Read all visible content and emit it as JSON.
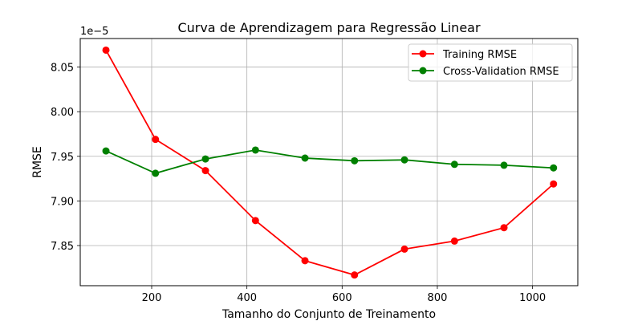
{
  "chart_data": {
    "type": "line",
    "title": "Curva de Aprendizagem para Regressão Linear",
    "xlabel": "Tamanho do Conjunto de Treinamento",
    "ylabel": "RMSE",
    "y_offset_label": "1e−5",
    "y_scale_factor": 1e-05,
    "xlim": [
      50,
      1095
    ],
    "ylim": [
      7.805,
      8.082
    ],
    "x_ticks": [
      200,
      400,
      600,
      800,
      1000
    ],
    "x_tick_labels": [
      "200",
      "400",
      "600",
      "800",
      "1000"
    ],
    "y_ticks": [
      7.85,
      7.9,
      7.95,
      8.0,
      8.05
    ],
    "y_tick_labels": [
      "7.85",
      "7.90",
      "7.95",
      "8.00",
      "8.05"
    ],
    "grid": true,
    "legend_position": "top-right",
    "x": [
      104,
      208,
      313,
      418,
      522,
      626,
      731,
      836,
      940,
      1044
    ],
    "series": [
      {
        "name": "Training RMSE",
        "color": "#ff0000",
        "values": [
          8.069,
          7.969,
          7.934,
          7.878,
          7.833,
          7.817,
          7.846,
          7.855,
          7.87,
          7.919
        ]
      },
      {
        "name": "Cross-Validation RMSE",
        "color": "#008000",
        "values": [
          7.956,
          7.931,
          7.947,
          7.957,
          7.948,
          7.945,
          7.946,
          7.941,
          7.94,
          7.937
        ]
      }
    ]
  }
}
